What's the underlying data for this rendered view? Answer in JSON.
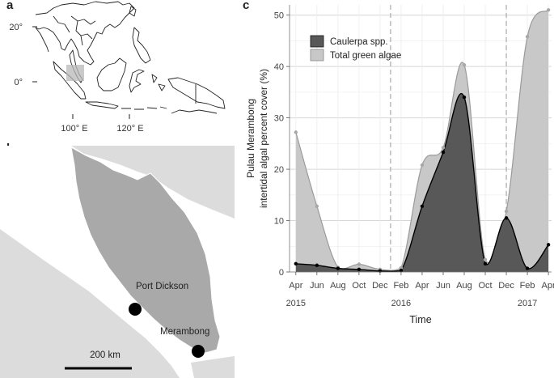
{
  "panels": {
    "a": "a",
    "b": "b",
    "c": "c"
  },
  "map_a": {
    "lat_labels": [
      "20°",
      "0°"
    ],
    "lon_labels": [
      "100° E",
      "120° E"
    ]
  },
  "map_b": {
    "places": [
      {
        "name": "Port Dickson"
      },
      {
        "name": "Merambong"
      }
    ],
    "scale_label": "200 km"
  },
  "chart_data": {
    "type": "area",
    "title": "",
    "xlabel": "Time",
    "ylabel_line1": "Pulau Merambong",
    "ylabel_line2": "intertidal algal percent cover (%)",
    "ylim": [
      0,
      52
    ],
    "yticks": [
      0,
      10,
      20,
      30,
      40,
      50
    ],
    "month_ticks": [
      "Apr",
      "Jun",
      "Aug",
      "Oct",
      "Dec",
      "Feb",
      "Apr",
      "Jun",
      "Aug",
      "Oct",
      "Dec",
      "Feb",
      "Apr"
    ],
    "year_labels": [
      {
        "label": "2015",
        "at": "2015-04"
      },
      {
        "label": "2016",
        "at": "2016-02"
      },
      {
        "label": "2017",
        "at": "2017-02"
      }
    ],
    "x_start": "2015-04",
    "x_end": "2017-04",
    "vertical_dashed_lines": [
      "2016-01",
      "2016-12"
    ],
    "legend_position": "top-left",
    "grid": true,
    "series": [
      {
        "name": "Caulerpa spp.",
        "color": "#555555",
        "points": [
          {
            "x": "2015-04",
            "y": 1.6
          },
          {
            "x": "2015-06",
            "y": 1.3
          },
          {
            "x": "2015-08",
            "y": 0.7
          },
          {
            "x": "2015-10",
            "y": 0.5
          },
          {
            "x": "2015-12",
            "y": 0.2
          },
          {
            "x": "2016-02",
            "y": 0.3
          },
          {
            "x": "2016-04",
            "y": 12.8
          },
          {
            "x": "2016-06",
            "y": 23.3
          },
          {
            "x": "2016-08",
            "y": 34.0
          },
          {
            "x": "2016-10",
            "y": 1.6
          },
          {
            "x": "2016-12",
            "y": 10.5
          },
          {
            "x": "2017-02",
            "y": 0.7
          },
          {
            "x": "2017-04",
            "y": 5.3
          }
        ]
      },
      {
        "name": "Total green algae",
        "color": "#c8c8c8",
        "points": [
          {
            "x": "2015-04",
            "y": 27.2
          },
          {
            "x": "2015-06",
            "y": 12.8
          },
          {
            "x": "2015-08",
            "y": 0.9
          },
          {
            "x": "2015-10",
            "y": 1.5
          },
          {
            "x": "2015-12",
            "y": 0.5
          },
          {
            "x": "2016-02",
            "y": 0.8
          },
          {
            "x": "2016-04",
            "y": 20.8
          },
          {
            "x": "2016-06",
            "y": 24.2
          },
          {
            "x": "2016-08",
            "y": 40.3
          },
          {
            "x": "2016-10",
            "y": 2.4
          },
          {
            "x": "2016-12",
            "y": 11.8
          },
          {
            "x": "2017-02",
            "y": 45.8
          },
          {
            "x": "2017-04",
            "y": 51.0
          }
        ]
      }
    ]
  }
}
